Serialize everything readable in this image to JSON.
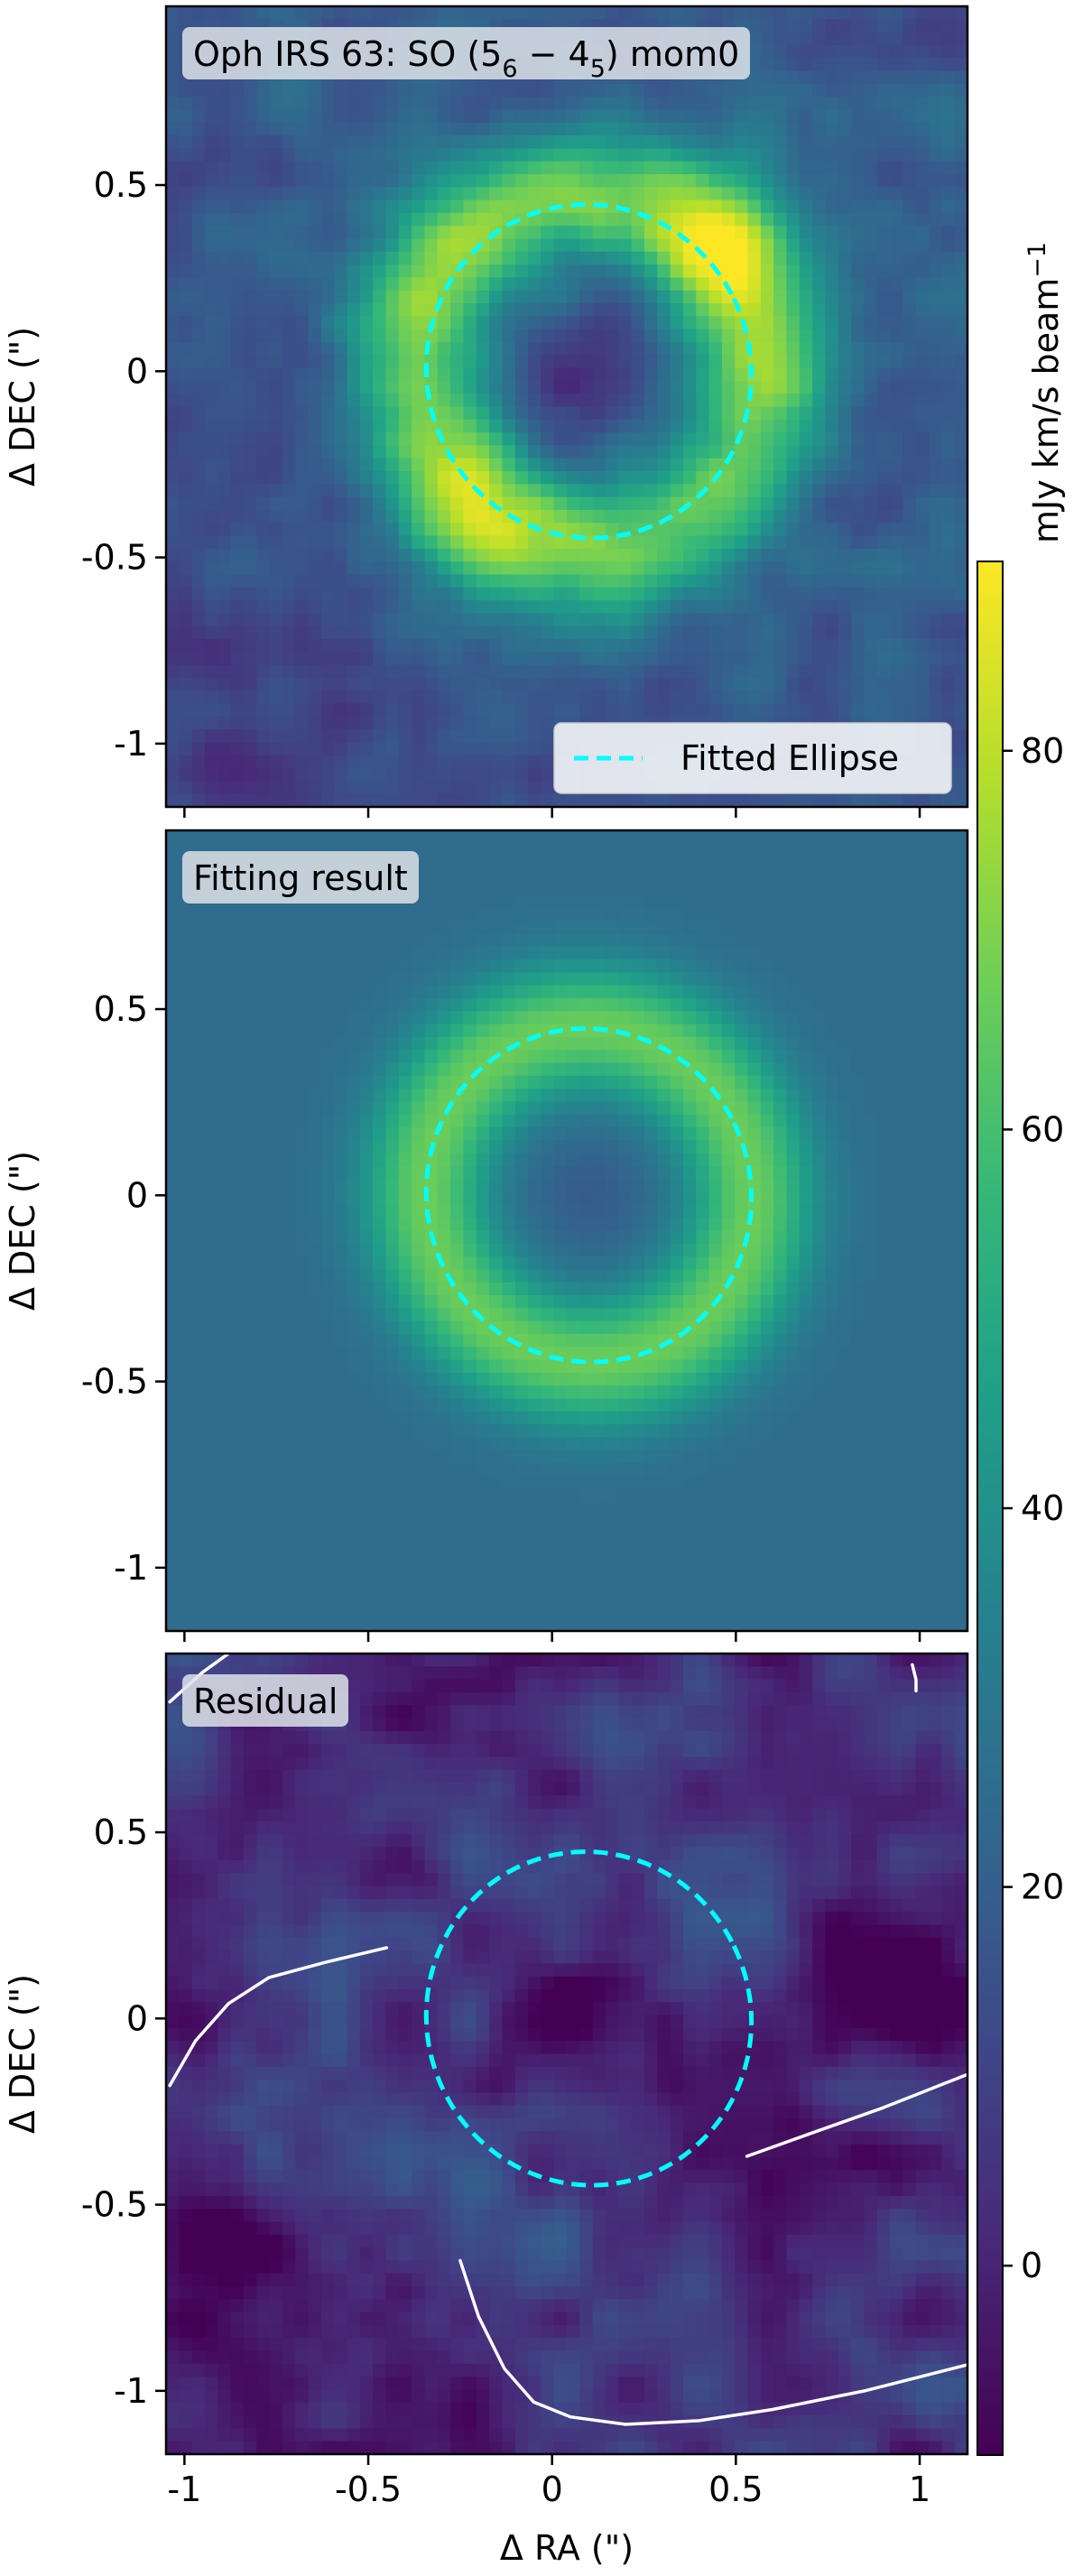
{
  "chart_data": {
    "type": "heatmap",
    "panels": [
      {
        "id": "mom0",
        "label": "Oph IRS 63: SO (5",
        "label_sub1": "6",
        "label_mid": " − 4",
        "label_sub2": "5",
        "label_end": ") mom0",
        "show_legend": true,
        "show_xticklabels": false,
        "contours": []
      },
      {
        "id": "fit",
        "label": "Fitting result",
        "show_legend": false,
        "show_xticklabels": false,
        "contours": []
      },
      {
        "id": "residual",
        "label": "Residual",
        "show_legend": false,
        "show_xticklabels": true,
        "contours": [
          [
            [
              -1.04,
              0.85
            ],
            [
              -0.95,
              0.93
            ],
            [
              -0.88,
              0.98
            ]
          ],
          [
            [
              -1.04,
              -0.18
            ],
            [
              -0.97,
              -0.06
            ],
            [
              -0.88,
              0.04
            ],
            [
              -0.77,
              0.11
            ],
            [
              -0.62,
              0.15
            ],
            [
              -0.45,
              0.19
            ]
          ],
          [
            [
              0.53,
              -0.37
            ],
            [
              0.7,
              -0.31
            ],
            [
              0.9,
              -0.24
            ],
            [
              1.13,
              -0.15
            ]
          ],
          [
            [
              -0.25,
              -0.65
            ],
            [
              -0.2,
              -0.8
            ],
            [
              -0.13,
              -0.94
            ],
            [
              -0.05,
              -1.03
            ],
            [
              0.05,
              -1.07
            ],
            [
              0.2,
              -1.09
            ],
            [
              0.4,
              -1.08
            ],
            [
              0.6,
              -1.05
            ],
            [
              0.85,
              -1.0
            ],
            [
              1.13,
              -0.93
            ]
          ],
          [
            [
              0.98,
              0.95
            ],
            [
              0.99,
              0.91
            ],
            [
              0.99,
              0.88
            ]
          ]
        ]
      }
    ],
    "ellipse": {
      "center": [
        0.1,
        0.0
      ],
      "semi_axes": [
        0.44,
        0.45
      ],
      "rotation_deg": 28,
      "color": "#00ffff",
      "linestyle": "dashed",
      "legend_label": "Fitted Ellipse"
    },
    "x_axis": {
      "label": "Δ RA (\")",
      "range": [
        -1.05,
        1.13
      ],
      "ticks": [
        -1,
        -0.5,
        0,
        0.5,
        1
      ],
      "tick_labels": [
        "-1",
        "-0.5",
        "0",
        "0.5",
        "1"
      ]
    },
    "y_axis": {
      "label": "Δ DEC (\")",
      "range": [
        -1.17,
        0.98
      ],
      "ticks": [
        0.5,
        0,
        -0.5,
        -1
      ],
      "tick_labels": [
        "0.5",
        "0",
        "-0.5",
        "-1"
      ]
    },
    "colorbar": {
      "label": "mJy km/s beam",
      "label_sup": "−1",
      "range": [
        -10,
        90
      ],
      "ticks": [
        80,
        60,
        40,
        20,
        0
      ],
      "tick_labels": [
        "80",
        "60",
        "40",
        "20",
        "0"
      ],
      "colormap": "viridis"
    },
    "colormap_stops": [
      "#440154",
      "#482878",
      "#3e4989",
      "#31688e",
      "#26828e",
      "#1f9e89",
      "#35b779",
      "#6ece58",
      "#b5de2b",
      "#fde725"
    ],
    "grid": false,
    "legend_position": "lower-right"
  }
}
